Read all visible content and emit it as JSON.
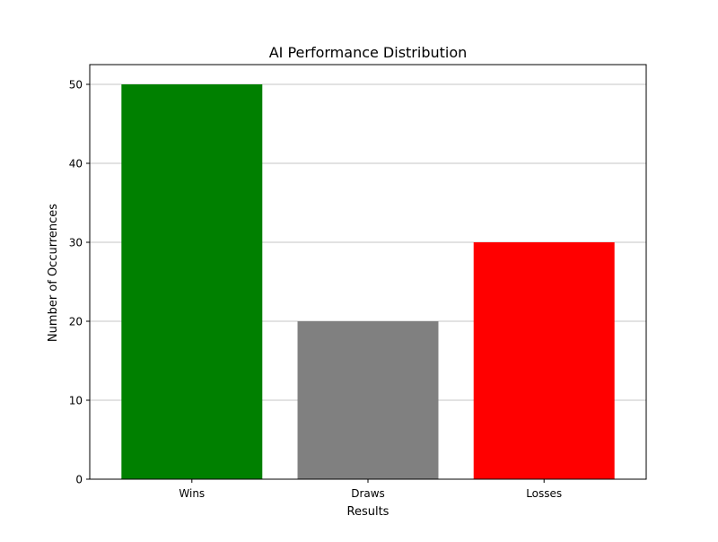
{
  "chart_data": {
    "type": "bar",
    "title": "AI Performance Distribution",
    "xlabel": "Results",
    "ylabel": "Number of Occurrences",
    "categories": [
      "Wins",
      "Draws",
      "Losses"
    ],
    "values": [
      50,
      20,
      30
    ],
    "colors": [
      "#008000",
      "#808080",
      "#ff0000"
    ],
    "ylim": [
      0,
      52.5
    ],
    "yticks": [
      0,
      10,
      20,
      30,
      40,
      50
    ],
    "grid": "y-axis horizontal gridlines"
  }
}
